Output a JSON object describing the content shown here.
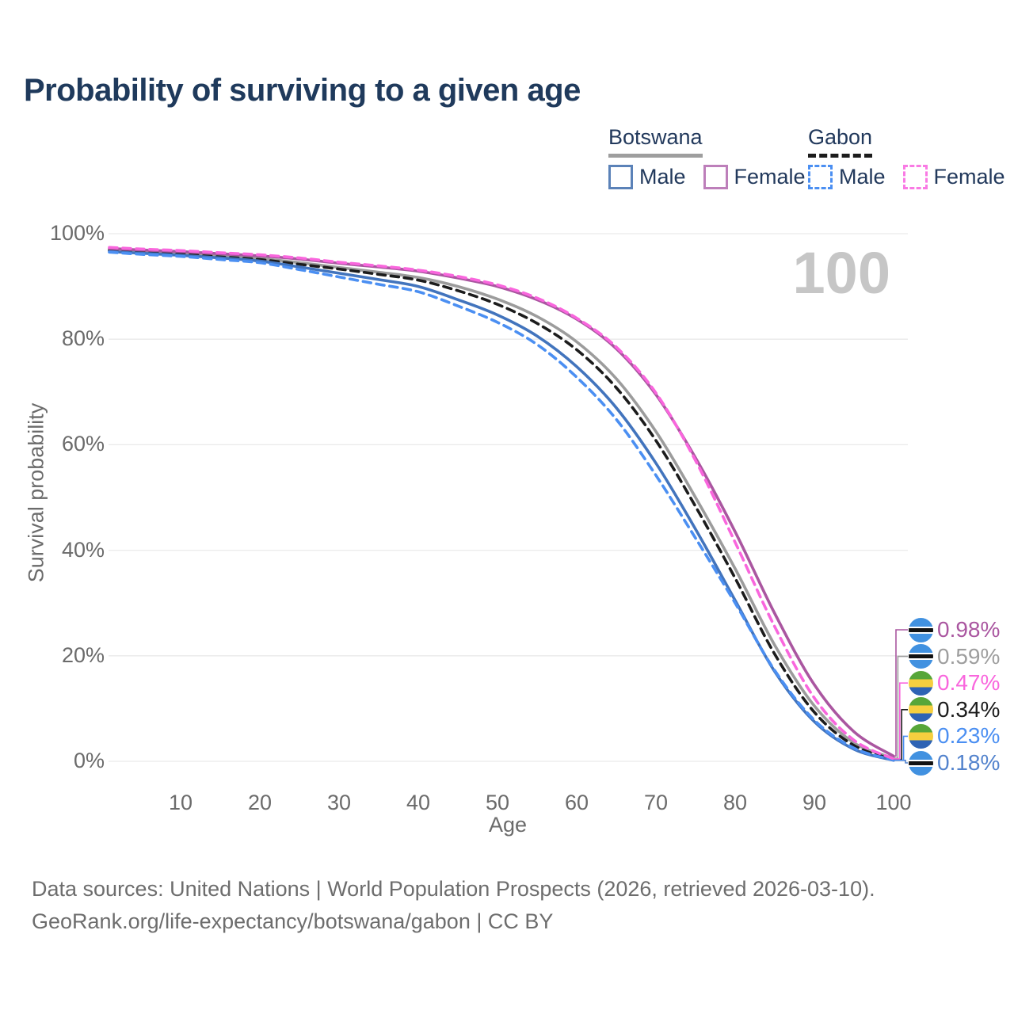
{
  "header": {
    "title": "Probability of surviving to a given age"
  },
  "legend": {
    "groups": [
      {
        "country": "Botswana",
        "line_style": "solid",
        "underline_color": "#9e9e9e",
        "items": [
          {
            "label": "Male",
            "color": "#5b82b8"
          },
          {
            "label": "Female",
            "color": "#bd7fba"
          }
        ]
      },
      {
        "country": "Gabon",
        "line_style": "dashed",
        "underline_color": "#1c1c1c",
        "items": [
          {
            "label": "Male",
            "color": "#4b8ff2"
          },
          {
            "label": "Female",
            "color": "#f97ae4"
          }
        ]
      }
    ]
  },
  "chart_data": {
    "type": "line",
    "title": "Probability of surviving to a given age",
    "xlabel": "Age",
    "ylabel": "Survival probability",
    "xlim": [
      1,
      100
    ],
    "ylim": [
      0,
      100
    ],
    "grid": "horizontal",
    "watermark": "100",
    "x_ticks": [
      "10",
      "20",
      "30",
      "40",
      "50",
      "60",
      "70",
      "80",
      "90",
      "100"
    ],
    "y_tick_values": [
      0,
      20,
      40,
      60,
      80,
      100
    ],
    "y_tick_labels": [
      "0%",
      "20%",
      "40%",
      "60%",
      "80%",
      "100%"
    ],
    "x": [
      1,
      5,
      10,
      15,
      20,
      25,
      30,
      35,
      40,
      45,
      50,
      55,
      60,
      65,
      70,
      75,
      80,
      85,
      90,
      95,
      100
    ],
    "series": [
      {
        "name": "Botswana Both sexes",
        "country": "Botswana",
        "sex": "both",
        "style": "solid",
        "color": "#9c9c9c",
        "flag": "botswana",
        "row": 1,
        "end_label": "0.59%",
        "end_label_color": "#9e9e9e",
        "values": [
          96.9,
          96.6,
          96.2,
          95.8,
          95.3,
          94.5,
          93.6,
          92.7,
          91.7,
          90.0,
          87.6,
          84.3,
          79.5,
          72.5,
          62.5,
          50.0,
          36.5,
          22.0,
          10.5,
          3.5,
          0.59
        ]
      },
      {
        "name": "Gabon Both sexes",
        "country": "Gabon",
        "sex": "both",
        "style": "dashed",
        "color": "#1c1c1c",
        "flag": "gabon",
        "row": 3,
        "end_label": "0.34%",
        "end_label_color": "#1c1c1c",
        "values": [
          96.8,
          96.5,
          96.1,
          95.6,
          95.1,
          94.2,
          93.3,
          92.3,
          91.2,
          89.2,
          86.6,
          83.0,
          78.0,
          70.8,
          60.8,
          48.3,
          34.7,
          20.3,
          9.3,
          3.0,
          0.34
        ]
      },
      {
        "name": "Botswana Male",
        "country": "Botswana",
        "sex": "male",
        "style": "solid",
        "color": "#4274bd",
        "flag": "botswana",
        "row": 5,
        "end_label": "0.18%",
        "end_label_color": "#5383cd",
        "values": [
          96.6,
          96.3,
          95.9,
          95.4,
          94.8,
          93.7,
          92.5,
          91.3,
          90.0,
          87.5,
          84.6,
          80.6,
          74.8,
          67.0,
          56.5,
          44.0,
          30.5,
          17.0,
          7.5,
          2.3,
          0.18
        ]
      },
      {
        "name": "Gabon Male",
        "country": "Gabon",
        "sex": "male",
        "style": "dashed",
        "color": "#4b8ff2",
        "flag": "gabon",
        "row": 4,
        "end_label": "0.23%",
        "end_label_color": "#4b8ff2",
        "values": [
          96.5,
          96.1,
          95.7,
          95.1,
          94.5,
          93.2,
          91.8,
          90.4,
          89.0,
          86.3,
          83.2,
          79.0,
          72.8,
          64.8,
          54.2,
          42.3,
          30.0,
          17.2,
          7.8,
          2.5,
          0.23
        ]
      },
      {
        "name": "Botswana Female",
        "country": "Botswana",
        "sex": "female",
        "style": "solid",
        "color": "#aa56a0",
        "flag": "botswana",
        "row": 0,
        "end_label": "0.98%",
        "end_label_color": "#aa56a0",
        "values": [
          97.2,
          96.9,
          96.6,
          96.2,
          95.8,
          95.2,
          94.4,
          93.7,
          92.9,
          91.6,
          90.0,
          87.5,
          83.8,
          78.2,
          69.5,
          57.5,
          43.5,
          28.0,
          14.5,
          5.6,
          0.98
        ]
      },
      {
        "name": "Gabon Female",
        "country": "Gabon",
        "sex": "female",
        "style": "dashed",
        "color": "#f966dd",
        "flag": "gabon",
        "row": 2,
        "end_label": "0.47%",
        "end_label_color": "#f966dd",
        "values": [
          97.4,
          97.1,
          96.8,
          96.4,
          96.0,
          95.4,
          94.6,
          93.9,
          93.1,
          91.9,
          90.3,
          87.8,
          84.0,
          78.5,
          69.8,
          57.0,
          41.5,
          25.5,
          12.0,
          4.0,
          0.47
        ]
      }
    ]
  },
  "footer": {
    "line1": "Data sources: United Nations | World Population Prospects (2026, retrieved 2026-03-10).",
    "line2": "GeoRank.org/life-expectancy/botswana/gabon | CC BY"
  }
}
